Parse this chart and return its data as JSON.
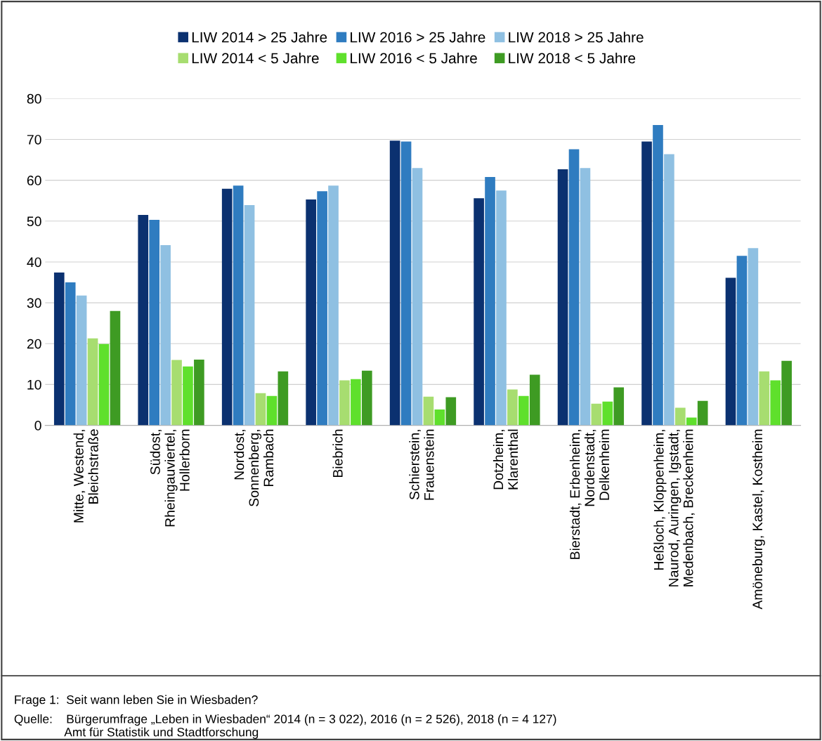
{
  "chart_data": {
    "type": "bar",
    "categories": [
      "Mitte, Westend,\nBleichstraße",
      "Südost,\nRheingauviertel,\nHollerborn",
      "Nordost,\nSonnenberg,\nRambach",
      "Biebrich",
      "Schierstein,\nFrauenstein",
      "Dotzheim,\nKlarenthal",
      "Bierstadt, Erbenheim,\nNordenstadt,\nDelkenheim",
      "Heßloch, Kloppenheim,\nNaurod, Auringen, Igstadt,\nMedenbach, Breckenheim",
      "Amöneburg, Kastel, Kostheim"
    ],
    "series": [
      {
        "name": "LIW 2014 > 25 Jahre",
        "color": "#0b3170",
        "values": [
          37.4,
          51.5,
          57.9,
          55.3,
          69.7,
          55.6,
          62.7,
          69.5,
          36.1
        ]
      },
      {
        "name": "LIW 2016 > 25 Jahre",
        "color": "#2f7cc0",
        "values": [
          35.0,
          50.3,
          58.7,
          57.3,
          69.5,
          60.8,
          67.6,
          73.5,
          41.5
        ]
      },
      {
        "name": "LIW 2018 > 25 Jahre",
        "color": "#8fc0e2",
        "values": [
          31.8,
          44.1,
          53.9,
          58.7,
          63.0,
          57.5,
          63.0,
          66.4,
          43.4
        ]
      },
      {
        "name": "LIW 2014 < 5 Jahre",
        "color": "#a7dd70",
        "values": [
          21.3,
          16.0,
          7.9,
          11.0,
          7.0,
          8.8,
          5.3,
          4.3,
          13.2
        ]
      },
      {
        "name": "LIW 2016 < 5 Jahre",
        "color": "#5fe02c",
        "values": [
          19.9,
          14.4,
          7.2,
          11.3,
          3.9,
          7.2,
          5.8,
          1.9,
          11.0
        ]
      },
      {
        "name": "LIW 2018 < 5 Jahre",
        "color": "#3e9b23",
        "values": [
          28.0,
          16.1,
          13.2,
          13.4,
          6.9,
          12.4,
          9.3,
          6.0,
          15.8
        ]
      }
    ],
    "ylim": [
      0,
      80
    ],
    "yticks": [
      0,
      10,
      20,
      30,
      40,
      50,
      60,
      70,
      80
    ],
    "grid": "y",
    "legend": "top",
    "annotations": [
      "Frage 1:  Seit wann leben Sie in Wiesbaden?",
      "Quelle:    Bürgerumfrage „Leben in Wiesbaden“ 2014 (n = 3 022), 2016 (n = 2 526), 2018 (n = 4 127)\n               Amt für Statistik und Stadtforschung"
    ]
  }
}
